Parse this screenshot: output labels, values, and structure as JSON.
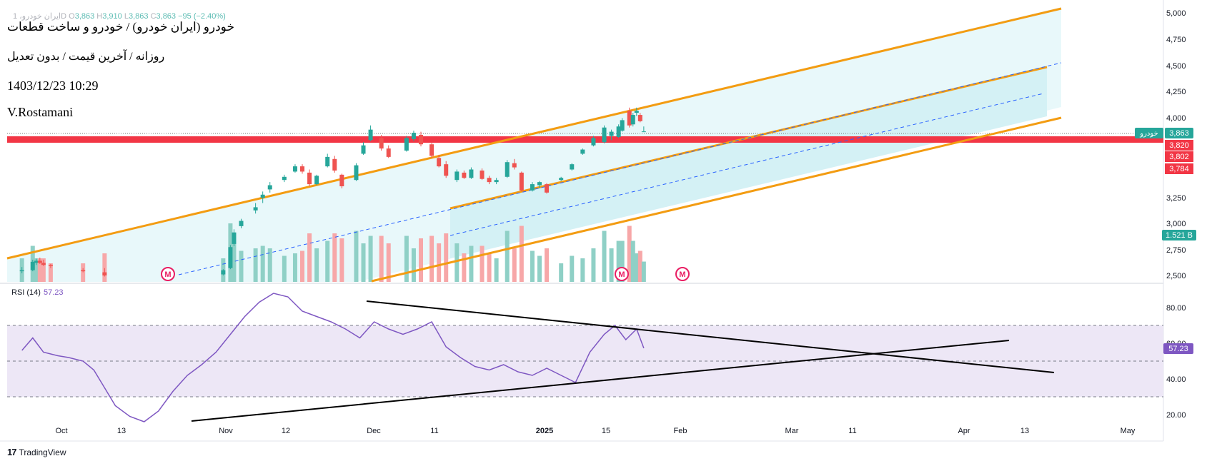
{
  "header": {
    "ohlc": {
      "symbol": "ایران خودرو، 1D",
      "o_label": "O",
      "o": "3,863",
      "h_label": "H",
      "h": "3,910",
      "l_label": "L",
      "l": "3,863",
      "c_label": "C",
      "c": "3,863",
      "change": "−95 (−2.40%)"
    },
    "title": "خودرو (ایران خودرو) / خودرو و ساخت قطعات",
    "subtitle": "روزانه / آخرین قیمت / بدون تعدیل",
    "datetime": "1403/12/23 10:29",
    "author": "V.Rostamani"
  },
  "branding": {
    "name": "TradingView"
  },
  "colors": {
    "up": "#26a69a",
    "down": "#ef5350",
    "channel": "#f39c12",
    "channel_fill": "#d6f2f5",
    "midline": "#2962ff",
    "support_zone": "#f23645",
    "rsi": "#7e57c2",
    "rsi_band": "#ede7f6",
    "trendline": "#000000"
  },
  "chart_data": [
    {
      "type": "candlestick",
      "title": "خودرو",
      "x_axis": {
        "ticks": [
          "Oct",
          "13",
          "Nov",
          "12",
          "Dec",
          "11",
          "2025",
          "15",
          "Feb",
          "Mar",
          "11",
          "Apr",
          "13",
          "May"
        ]
      },
      "y_axis": {
        "ticks": [
          "5,000",
          "4,750",
          "4,500",
          "4,250",
          "4,000",
          "3,250",
          "3,000",
          "2,750",
          "2,500"
        ],
        "range": [
          2480,
          5000
        ]
      },
      "price_labels": [
        {
          "name": "خودرو",
          "value": "3,863",
          "color": "#26a69a"
        },
        {
          "value": "3,820",
          "color": "#f23645"
        },
        {
          "value": "3,802",
          "color": "#f23645"
        },
        {
          "value": "3,784",
          "color": "#f23645"
        }
      ],
      "volume_label": {
        "value": "1.521 B",
        "color": "#26a69a"
      },
      "support_zone": [
        3784,
        3820
      ],
      "markers": [
        "M",
        "M",
        "M"
      ],
      "ohlc_approx": [
        {
          "x": "2024-09-20",
          "o": 2530,
          "h": 2570,
          "l": 2510,
          "c": 2540
        },
        {
          "x": "2024-09-23",
          "o": 2540,
          "h": 2640,
          "l": 2530,
          "c": 2620
        },
        {
          "x": "2024-09-24",
          "o": 2610,
          "h": 2650,
          "l": 2590,
          "c": 2630
        },
        {
          "x": "2024-09-25",
          "o": 2630,
          "h": 2660,
          "l": 2600,
          "c": 2610
        },
        {
          "x": "2024-09-26",
          "o": 2610,
          "h": 2640,
          "l": 2580,
          "c": 2590
        },
        {
          "x": "2024-09-28",
          "o": 2590,
          "h": 2600,
          "l": 2560,
          "c": 2580
        },
        {
          "x": "2024-10-07",
          "o": 2540,
          "h": 2560,
          "l": 2520,
          "c": 2530
        },
        {
          "x": "2024-10-13",
          "o": 2520,
          "h": 2560,
          "l": 2480,
          "c": 2490
        },
        {
          "x": "2024-11-15",
          "o": 2500,
          "h": 2550,
          "l": 2490,
          "c": 2540
        },
        {
          "x": "2024-11-17",
          "o": 2560,
          "h": 2780,
          "l": 2550,
          "c": 2760
        },
        {
          "x": "2024-11-18",
          "o": 2790,
          "h": 2930,
          "l": 2770,
          "c": 2900
        },
        {
          "x": "2024-11-20",
          "o": 2960,
          "h": 3030,
          "l": 2940,
          "c": 3010
        },
        {
          "x": "2024-11-24",
          "o": 3110,
          "h": 3180,
          "l": 3080,
          "c": 3140
        },
        {
          "x": "2024-11-26",
          "o": 3230,
          "h": 3290,
          "l": 3180,
          "c": 3260
        },
        {
          "x": "2024-11-28",
          "o": 3310,
          "h": 3380,
          "l": 3280,
          "c": 3350
        },
        {
          "x": "2024-12-02",
          "o": 3400,
          "h": 3450,
          "l": 3380,
          "c": 3430
        },
        {
          "x": "2024-12-05",
          "o": 3480,
          "h": 3550,
          "l": 3470,
          "c": 3530
        },
        {
          "x": "2024-12-07",
          "o": 3530,
          "h": 3550,
          "l": 3460,
          "c": 3480
        },
        {
          "x": "2024-12-09",
          "o": 3470,
          "h": 3500,
          "l": 3340,
          "c": 3360
        },
        {
          "x": "2024-12-11",
          "o": 3360,
          "h": 3450,
          "l": 3350,
          "c": 3440
        },
        {
          "x": "2024-12-14",
          "o": 3530,
          "h": 3650,
          "l": 3520,
          "c": 3620
        },
        {
          "x": "2024-12-16",
          "o": 3600,
          "h": 3630,
          "l": 3470,
          "c": 3490
        },
        {
          "x": "2024-12-18",
          "o": 3450,
          "h": 3460,
          "l": 3320,
          "c": 3340
        },
        {
          "x": "2024-12-22",
          "o": 3400,
          "h": 3560,
          "l": 3390,
          "c": 3540
        },
        {
          "x": "2024-12-24",
          "o": 3650,
          "h": 3760,
          "l": 3640,
          "c": 3730
        },
        {
          "x": "2024-12-26",
          "o": 3780,
          "h": 3920,
          "l": 3770,
          "c": 3880
        },
        {
          "x": "2024-12-29",
          "o": 3800,
          "h": 3830,
          "l": 3680,
          "c": 3700
        },
        {
          "x": "2024-12-31",
          "o": 3700,
          "h": 3730,
          "l": 3610,
          "c": 3620
        },
        {
          "x": "2025-01-05",
          "o": 3680,
          "h": 3820,
          "l": 3670,
          "c": 3800
        },
        {
          "x": "2025-01-07",
          "o": 3790,
          "h": 3870,
          "l": 3770,
          "c": 3850
        },
        {
          "x": "2025-01-09",
          "o": 3830,
          "h": 3860,
          "l": 3720,
          "c": 3740
        },
        {
          "x": "2025-01-12",
          "o": 3740,
          "h": 3760,
          "l": 3610,
          "c": 3630
        },
        {
          "x": "2025-01-14",
          "o": 3610,
          "h": 3640,
          "l": 3520,
          "c": 3530
        },
        {
          "x": "2025-01-16",
          "o": 3550,
          "h": 3580,
          "l": 3420,
          "c": 3440
        },
        {
          "x": "2025-01-19",
          "o": 3400,
          "h": 3500,
          "l": 3380,
          "c": 3480
        },
        {
          "x": "2025-01-21",
          "o": 3470,
          "h": 3490,
          "l": 3410,
          "c": 3420
        },
        {
          "x": "2025-01-23",
          "o": 3420,
          "h": 3520,
          "l": 3410,
          "c": 3500
        },
        {
          "x": "2025-01-26",
          "o": 3490,
          "h": 3510,
          "l": 3400,
          "c": 3410
        },
        {
          "x": "2025-01-28",
          "o": 3420,
          "h": 3440,
          "l": 3360,
          "c": 3380
        },
        {
          "x": "2025-01-30",
          "o": 3380,
          "h": 3420,
          "l": 3360,
          "c": 3400
        },
        {
          "x": "2025-02-02",
          "o": 3430,
          "h": 3590,
          "l": 3420,
          "c": 3570
        },
        {
          "x": "2025-02-04",
          "o": 3560,
          "h": 3600,
          "l": 3500,
          "c": 3520
        },
        {
          "x": "2025-02-06",
          "o": 3470,
          "h": 3480,
          "l": 3290,
          "c": 3300
        },
        {
          "x": "2025-02-09",
          "o": 3300,
          "h": 3380,
          "l": 3290,
          "c": 3360
        },
        {
          "x": "2025-02-11",
          "o": 3350,
          "h": 3390,
          "l": 3320,
          "c": 3380
        },
        {
          "x": "2025-02-13",
          "o": 3360,
          "h": 3370,
          "l": 3270,
          "c": 3280
        },
        {
          "x": "2025-02-17",
          "o": 3400,
          "h": 3430,
          "l": 3390,
          "c": 3420
        },
        {
          "x": "2025-02-20",
          "o": 3500,
          "h": 3560,
          "l": 3490,
          "c": 3550
        },
        {
          "x": "2025-02-23",
          "o": 3650,
          "h": 3700,
          "l": 3640,
          "c": 3690
        },
        {
          "x": "2025-02-26",
          "o": 3730,
          "h": 3820,
          "l": 3720,
          "c": 3800
        },
        {
          "x": "2025-03-01",
          "o": 3760,
          "h": 3920,
          "l": 3750,
          "c": 3900
        },
        {
          "x": "2025-03-03",
          "o": 3820,
          "h": 3880,
          "l": 3780,
          "c": 3860
        },
        {
          "x": "2025-03-05",
          "o": 3810,
          "h": 3930,
          "l": 3800,
          "c": 3910
        },
        {
          "x": "2025-03-06",
          "o": 3870,
          "h": 3990,
          "l": 3860,
          "c": 3970
        },
        {
          "x": "2025-03-08",
          "o": 4060,
          "h": 4090,
          "l": 3900,
          "c": 3920
        },
        {
          "x": "2025-03-09",
          "o": 3930,
          "h": 4040,
          "l": 3910,
          "c": 4020
        },
        {
          "x": "2025-03-10",
          "o": 4040,
          "h": 4090,
          "l": 4010,
          "c": 4060
        },
        {
          "x": "2025-03-11",
          "o": 4020,
          "h": 4040,
          "l": 3950,
          "c": 3960
        },
        {
          "x": "2025-03-12",
          "o": 3863,
          "h": 3910,
          "l": 3863,
          "c": 3863
        }
      ]
    },
    {
      "type": "line",
      "title": "RSI (14)",
      "value_label": "57.23",
      "y_axis": {
        "ticks": [
          "80.00",
          "60.00",
          "40.00",
          "20.00"
        ],
        "range": [
          15,
          92
        ],
        "band": [
          30,
          70
        ]
      },
      "series": [
        {
          "x": [
            "2024-09-20",
            "2024-09-23",
            "2024-09-26",
            "2024-09-30",
            "2024-10-03",
            "2024-10-07",
            "2024-10-10",
            "2024-10-13",
            "2024-10-16",
            "2024-10-20",
            "2024-10-24",
            "2024-10-28",
            "2024-11-01",
            "2024-11-05",
            "2024-11-09",
            "2024-11-13",
            "2024-11-17",
            "2024-11-21",
            "2024-11-25",
            "2024-11-29",
            "2024-12-03",
            "2024-12-07",
            "2024-12-11",
            "2024-12-15",
            "2024-12-19",
            "2024-12-23",
            "2024-12-27",
            "2024-12-31",
            "2025-01-04",
            "2025-01-08",
            "2025-01-12",
            "2025-01-16",
            "2025-01-20",
            "2025-01-24",
            "2025-01-28",
            "2025-02-01",
            "2025-02-05",
            "2025-02-09",
            "2025-02-13",
            "2025-02-17",
            "2025-02-21",
            "2025-02-25",
            "2025-03-01",
            "2025-03-04",
            "2025-03-07",
            "2025-03-10",
            "2025-03-12"
          ],
          "values": [
            56,
            63,
            55,
            53,
            52,
            50,
            45,
            35,
            25,
            19,
            16,
            22,
            33,
            42,
            48,
            55,
            65,
            75,
            83,
            88,
            86,
            78,
            75,
            72,
            68,
            63,
            72,
            68,
            65,
            68,
            72,
            58,
            52,
            47,
            45,
            48,
            44,
            42,
            46,
            42,
            38,
            55,
            65,
            70,
            62,
            68,
            57.23
          ]
        }
      ],
      "trendlines": [
        "descending",
        "ascending"
      ]
    }
  ]
}
